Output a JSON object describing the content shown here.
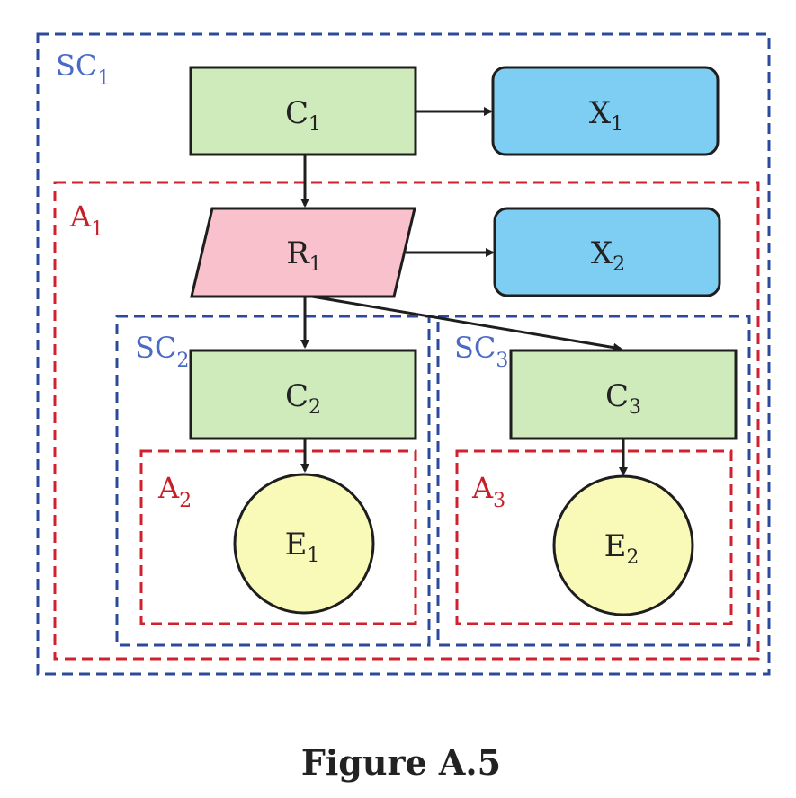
{
  "colors": {
    "sc_border": "#2c4a9c",
    "a_border": "#d0222e",
    "sc_label": "#4a6ac4",
    "a_label": "#c81e28",
    "c_fill": "#d0ebbb",
    "x_fill": "#7ecef4",
    "r_fill": "#f8c1cc",
    "e_fill": "#fafab8",
    "stroke": "#1e1e1e"
  },
  "regions": {
    "sc1": {
      "main": "SC",
      "sub": "1"
    },
    "a1": {
      "main": "A",
      "sub": "1"
    },
    "sc2": {
      "main": "SC",
      "sub": "2"
    },
    "sc3": {
      "main": "SC",
      "sub": "3"
    },
    "a2": {
      "main": "A",
      "sub": "2"
    },
    "a3": {
      "main": "A",
      "sub": "3"
    }
  },
  "nodes": {
    "c1": {
      "main": "C",
      "sub": "1"
    },
    "x1": {
      "main": "X",
      "sub": "1"
    },
    "r1": {
      "main": "R",
      "sub": "1"
    },
    "x2": {
      "main": "X",
      "sub": "2"
    },
    "c2": {
      "main": "C",
      "sub": "2"
    },
    "c3": {
      "main": "C",
      "sub": "3"
    },
    "e1": {
      "main": "E",
      "sub": "1"
    },
    "e2": {
      "main": "E",
      "sub": "2"
    }
  },
  "caption": "Figure A.5"
}
